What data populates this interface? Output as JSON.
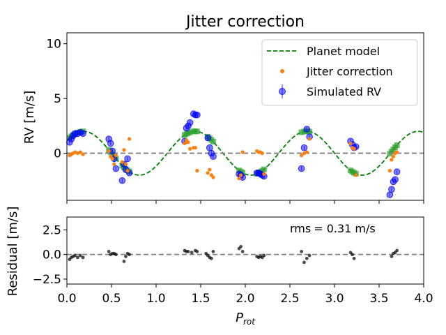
{
  "chart_data": [
    {
      "type": "scatter",
      "title": "Jitter correction",
      "ylabel": "RV [m/s]",
      "xlabel": "",
      "xlim": [
        0.0,
        4.0
      ],
      "ylim": [
        -4.3,
        11.0
      ],
      "yticks": [
        0,
        5,
        10
      ],
      "yticklabels": [
        "0",
        "5",
        "10"
      ],
      "grid": false,
      "legend_position": "top-right",
      "legend": [
        "Planet model",
        "Jitter correction",
        "Simulated RV"
      ],
      "reference_line_y": 0,
      "planet_model": {
        "name": "Planet model",
        "amplitude": 2.0,
        "period": 1.25,
        "phase_peak_at": 0.1875,
        "color": "#008000"
      },
      "x": [
        0.03,
        0.05,
        0.07,
        0.09,
        0.12,
        0.15,
        0.18,
        0.47,
        0.49,
        0.51,
        0.53,
        0.55,
        0.62,
        0.64,
        0.66,
        0.68,
        0.7,
        1.32,
        1.34,
        1.36,
        1.38,
        1.42,
        1.44,
        1.46,
        1.58,
        1.6,
        1.62,
        1.64,
        1.93,
        1.95,
        1.97,
        2.13,
        2.15,
        2.17,
        2.19,
        2.21,
        2.63,
        2.66,
        2.69,
        2.72,
        3.18,
        3.2,
        3.22,
        3.24,
        3.62,
        3.64,
        3.66,
        3.68,
        3.7
      ],
      "series": [
        {
          "name": "Simulated RV",
          "color": "#0000ff",
          "values": [
            1.0,
            1.3,
            1.6,
            1.8,
            1.8,
            1.9,
            1.8,
            1.3,
            0.9,
            0.2,
            -0.5,
            -1.4,
            -2.5,
            -1.0,
            -1.5,
            -0.5,
            -1.8,
            1.1,
            2.3,
            2.5,
            2.8,
            3.6,
            3.5,
            3.5,
            1.4,
            0.5,
            0.0,
            -0.3,
            -1.9,
            -2.0,
            -2.2,
            -1.8,
            -1.8,
            -1.9,
            -2.0,
            -2.1,
            -1.4,
            0.5,
            2.2,
            1.5,
            1.1,
            0.8,
            0.5,
            0.6,
            -3.8,
            -3.3,
            -2.6,
            -2.4,
            -1.7
          ]
        },
        {
          "name": "Jitter correction",
          "color": "#ff7f0e",
          "values": [
            -0.2,
            -0.1,
            0.0,
            0.1,
            0.0,
            0.1,
            -0.1,
            0.2,
            -0.3,
            -0.5,
            -1.0,
            -0.2,
            -0.8,
            0.3,
            -1.0,
            -1.6,
            1.3,
            0.9,
            1.2,
            1.0,
            0.4,
            0.5,
            0.5,
            -1.6,
            -1.8,
            -1.5,
            -2.0,
            -2.2,
            -2.3,
            -2.0,
            0.1,
            0.2,
            0.1,
            0.1,
            0.0,
            -1.9,
            -0.2,
            0.0,
            0.1,
            1.3,
            0.9,
            0.5,
            0.4,
            -2.0,
            -1.6,
            -0.6,
            -0.3,
            0.0,
            0.1
          ]
        }
      ]
    },
    {
      "type": "scatter",
      "xlabel": "P_rot",
      "ylabel": "Residual [m/s]",
      "xlim": [
        0.0,
        4.0
      ],
      "ylim": [
        -3.0,
        3.8
      ],
      "xticks": [
        0.0,
        0.5,
        1.0,
        1.5,
        2.0,
        2.5,
        3.0,
        3.5,
        4.0
      ],
      "xticklabels": [
        "0.0",
        "0.5",
        "1.0",
        "1.5",
        "2.0",
        "2.5",
        "3.0",
        "3.5",
        "4.0"
      ],
      "yticks": [
        2.5,
        0.0,
        -2.5
      ],
      "yticklabels": [
        "2.5",
        "0.0",
        "−2.5"
      ],
      "reference_line_y": 0,
      "annotation_label": "rms",
      "annotation_value": "= 0.31 m/s",
      "x": [
        0.03,
        0.05,
        0.07,
        0.09,
        0.12,
        0.15,
        0.18,
        0.47,
        0.49,
        0.51,
        0.53,
        0.55,
        0.64,
        0.66,
        0.68,
        0.7,
        1.32,
        1.34,
        1.36,
        1.4,
        1.44,
        1.46,
        1.56,
        1.58,
        1.6,
        1.62,
        1.64,
        1.93,
        1.95,
        1.97,
        2.13,
        2.15,
        2.17,
        2.19,
        2.21,
        2.63,
        2.66,
        2.69,
        2.72,
        3.18,
        3.2,
        3.22,
        3.64,
        3.66,
        3.68,
        3.7
      ],
      "values": [
        -0.5,
        -0.3,
        -0.2,
        -0.1,
        -0.3,
        -0.1,
        -0.3,
        0.3,
        0.0,
        0.1,
        0.1,
        0.0,
        -0.7,
        -0.2,
        0.1,
        0.0,
        0.4,
        0.3,
        0.3,
        0.2,
        0.4,
        0.3,
        0.1,
        -0.1,
        -0.3,
        -0.4,
        0.3,
        0.6,
        0.8,
        0.3,
        -0.2,
        -0.3,
        -0.2,
        -0.3,
        -0.1,
        0.3,
        -0.8,
        -0.4,
        -0.1,
        0.2,
        0.0,
        -0.4,
        -0.2,
        0.1,
        0.2,
        0.4
      ]
    }
  ]
}
